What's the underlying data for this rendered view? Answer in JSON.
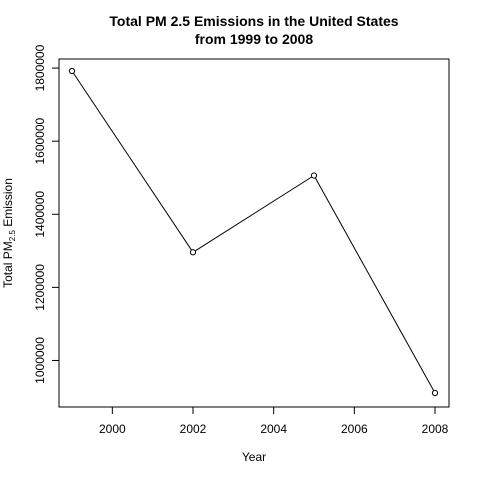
{
  "chart_data": {
    "type": "line",
    "title": [
      "Total PM 2.5 Emissions in the United States",
      "from 1999 to 2008"
    ],
    "xlabel": "Year",
    "ylabel": {
      "main": "Total PM",
      "subscript": "2.5",
      "suffix": " Emission"
    },
    "x": [
      1999,
      2002,
      2005,
      2008
    ],
    "y": [
      1792000,
      1296000,
      1506000,
      911000
    ],
    "xlim": [
      1999,
      2008
    ],
    "ylim": [
      911000,
      1792000
    ],
    "xticks": [
      2000,
      2002,
      2004,
      2006,
      2008
    ],
    "yticks": [
      1000000,
      1200000,
      1400000,
      1600000,
      1800000
    ],
    "grid": false,
    "legend": "none",
    "line_color": "#000000",
    "marker": "open-circle"
  }
}
